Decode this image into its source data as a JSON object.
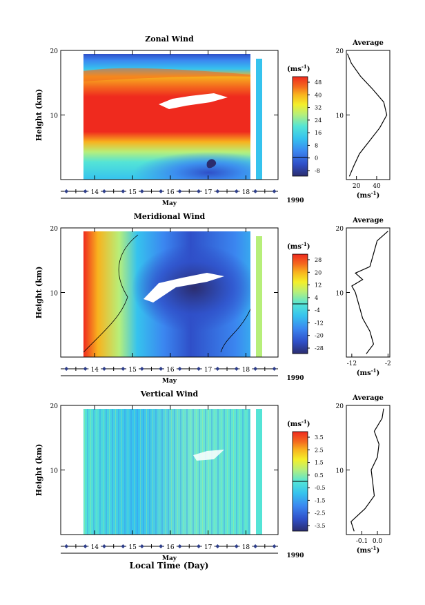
{
  "figure": {
    "xlabel": "Local Time (Day)",
    "month_label": "May",
    "year_label": "1990",
    "ylabel": "Height (km)",
    "unit_label": "(ms",
    "unit_exp": "-1",
    "unit_close": ")",
    "avg_title": "Average"
  },
  "chart_data": [
    {
      "type": "heatmap",
      "title": "Zonal Wind",
      "xlabel": "Local Time (Day)",
      "ylabel": "Height (km)",
      "x_ticks": [
        "14",
        "15",
        "16",
        "17",
        "18"
      ],
      "y_ticks": [
        "10",
        "20"
      ],
      "xlim": [
        13.1,
        18.85
      ],
      "ylim": [
        0,
        20
      ],
      "colorbar": {
        "unit": "ms-1",
        "ticks": [
          "48",
          "40",
          "32",
          "24",
          "16",
          "8",
          "0",
          "-8"
        ],
        "range": [
          -12,
          52
        ]
      },
      "avg_profile": {
        "xlim": [
          10,
          53
        ],
        "x_ticks": [
          "20",
          "40"
        ],
        "heights": [
          0.5,
          2,
          4,
          6,
          8,
          10,
          12,
          14,
          16,
          18,
          19.5
        ],
        "values": [
          13,
          17,
          23,
          33,
          43,
          50,
          47,
          36,
          24,
          15,
          11
        ]
      }
    },
    {
      "type": "heatmap",
      "title": "Meridional Wind",
      "xlabel": "Local Time (Day)",
      "ylabel": "Height (km)",
      "x_ticks": [
        "14",
        "15",
        "16",
        "17",
        "18"
      ],
      "y_ticks": [
        "10",
        "20"
      ],
      "xlim": [
        13.1,
        18.85
      ],
      "ylim": [
        0,
        20
      ],
      "colorbar": {
        "unit": "ms-1",
        "ticks": [
          "28",
          "20",
          "12",
          "4",
          "-4",
          "-12",
          "-20",
          "-28"
        ],
        "range": [
          -32,
          32
        ]
      },
      "avg_profile": {
        "xlim": [
          -13.5,
          -1.5
        ],
        "x_ticks": [
          "-12",
          "-2"
        ],
        "heights": [
          0.5,
          2,
          4,
          6,
          8,
          10,
          11,
          12,
          13,
          14,
          16,
          18,
          19.5
        ],
        "values": [
          -8,
          -6,
          -7,
          -9,
          -10,
          -11,
          -12,
          -9,
          -11,
          -7,
          -6,
          -5,
          -2
        ]
      }
    },
    {
      "type": "heatmap",
      "title": "Vertical Wind",
      "xlabel": "Local Time (Day)",
      "ylabel": "Height (km)",
      "x_ticks": [
        "14",
        "15",
        "16",
        "17",
        "18"
      ],
      "y_ticks": [
        "10",
        "20"
      ],
      "xlim": [
        13.1,
        18.85
      ],
      "ylim": [
        0,
        20
      ],
      "colorbar": {
        "unit": "ms-1",
        "ticks": [
          "3.5",
          "2.5",
          "1.5",
          "0.5",
          "-0.5",
          "-1.5",
          "-2.5",
          "-3.5"
        ],
        "range": [
          -4,
          4
        ]
      },
      "avg_profile": {
        "xlim": [
          -0.2,
          0.08
        ],
        "x_ticks": [
          "-0.1",
          "0.0"
        ],
        "heights": [
          0.5,
          2,
          4,
          6,
          8,
          10,
          12,
          14,
          16,
          18,
          19.5
        ],
        "values": [
          -0.15,
          -0.17,
          -0.08,
          -0.02,
          -0.03,
          -0.04,
          0.0,
          0.01,
          -0.02,
          0.03,
          0.04
        ]
      }
    }
  ]
}
